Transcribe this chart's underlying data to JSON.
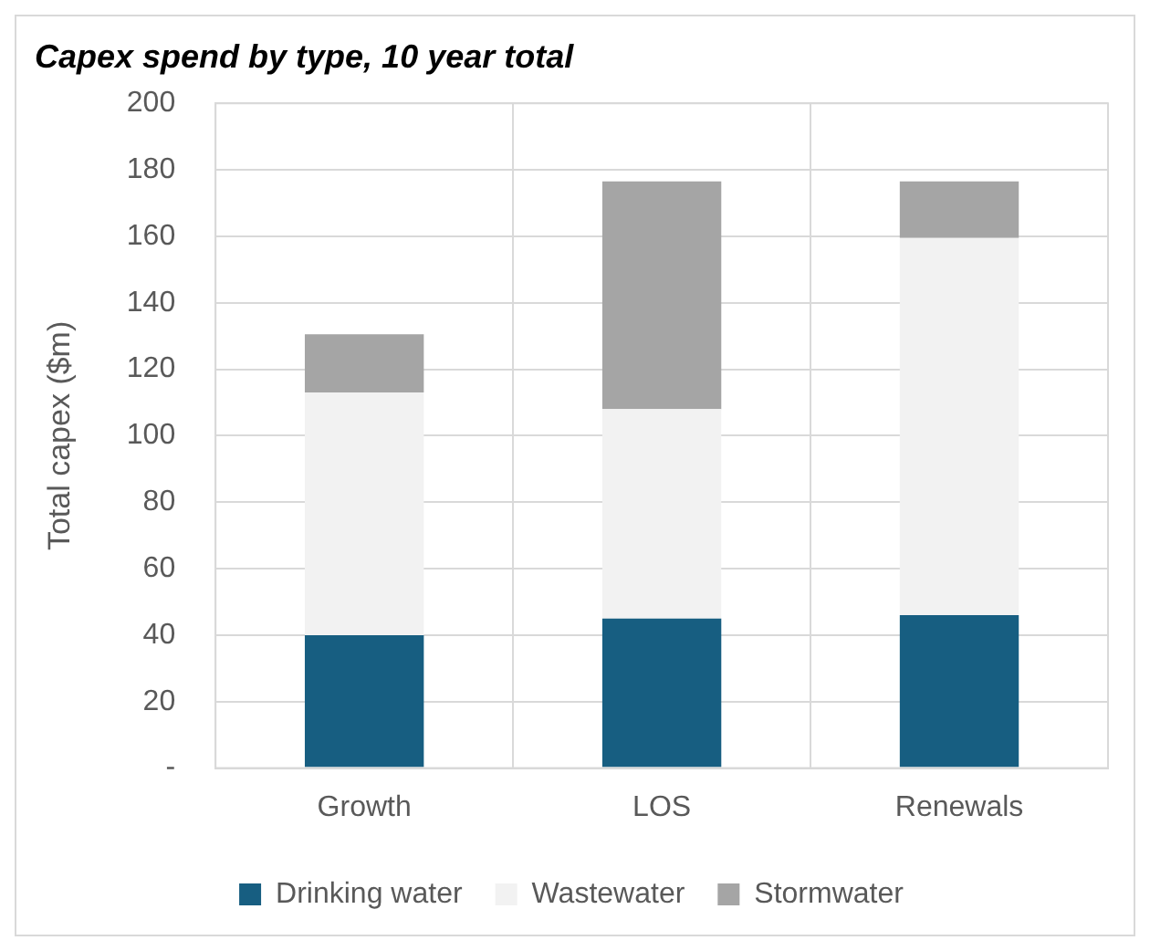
{
  "chart_data": {
    "type": "bar",
    "title": "Capex spend by type, 10 year total",
    "ylabel": "Total capex ($m)",
    "categories": [
      "Growth",
      "LOS",
      "Renewals"
    ],
    "stacked": true,
    "series": [
      {
        "name": "Drinking water",
        "color": "#175e81",
        "values": [
          40,
          45,
          46
        ]
      },
      {
        "name": "Wastewater",
        "color": "#f2f2f2",
        "values": [
          73,
          63,
          113.5
        ]
      },
      {
        "name": "Stormwater",
        "color": "#a5a5a5",
        "values": [
          17.5,
          68.5,
          17
        ]
      }
    ],
    "ylim": [
      0,
      200
    ],
    "yticks": [
      {
        "value": 0,
        "label": "-"
      },
      20,
      40,
      60,
      80,
      100,
      120,
      140,
      160,
      180,
      200
    ],
    "grid": true,
    "legend": "bottom"
  }
}
